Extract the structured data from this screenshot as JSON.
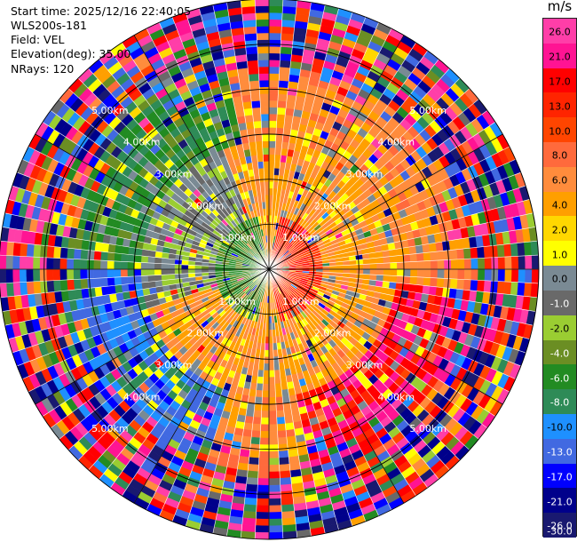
{
  "info": {
    "start_time": "Start time: 2025/12/16 22:40:05",
    "station": "WLS200s-181",
    "field": "Field: VEL",
    "elevation": "Elevation(deg): 35.00",
    "nrays": "NRays: 120"
  },
  "chart_data": {
    "type": "ppi",
    "field": "VEL",
    "unit": "m/s",
    "nrays": 120,
    "elevation_deg": 35.0,
    "max_range_km": 6.0,
    "range_rings_km": [
      1,
      2,
      3,
      4,
      5,
      6
    ],
    "range_labels": [
      "1.00km",
      "2.00km",
      "3.00km",
      "4.00km",
      "5.00km"
    ],
    "colorbar": {
      "ticks": [
        "26.0",
        "21.0",
        "17.0",
        "13.0",
        "10.0",
        "8.0",
        "6.0",
        "4.0",
        "2.0",
        "1.0",
        "0.0",
        "-1.0",
        "-2.0",
        "-4.0",
        "-6.0",
        "-8.0",
        "-10.0",
        "-13.0",
        "-17.0",
        "-21.0",
        "-26.0",
        "-30.0"
      ],
      "colors": [
        "#ff3ea8",
        "#ff1493",
        "#ff0000",
        "#ff2400",
        "#ff4500",
        "#ff6a3c",
        "#ff8c3c",
        "#ff9f00",
        "#ffd700",
        "#ffff00",
        "#7a8a94",
        "#696969",
        "#9acd32",
        "#6b8e23",
        "#228b22",
        "#2e8b57",
        "#1e90ff",
        "#4169e1",
        "#0000ff",
        "#00008b",
        "#191970"
      ]
    },
    "velocity_pattern": [
      {
        "ring_km": [
          0.0,
          0.7
        ],
        "sector": "west",
        "value_ms": -8
      },
      {
        "ring_km": [
          0.0,
          1.2
        ],
        "sector": "east",
        "value_ms": 10
      },
      {
        "ring_km": [
          1.0,
          2.8
        ],
        "sector": "all",
        "value_ms": 3
      },
      {
        "ring_km": [
          1.5,
          3.5
        ],
        "sector": "north-west",
        "value_ms": -4
      },
      {
        "ring_km": [
          3.0,
          4.5
        ],
        "sector": "south-east",
        "value_ms": 17
      },
      {
        "ring_km": [
          3.0,
          4.5
        ],
        "sector": "north-west",
        "value_ms": -7
      },
      {
        "ring_km": [
          4.5,
          6.0
        ],
        "sector": "all",
        "value_ms": "noise"
      }
    ]
  }
}
